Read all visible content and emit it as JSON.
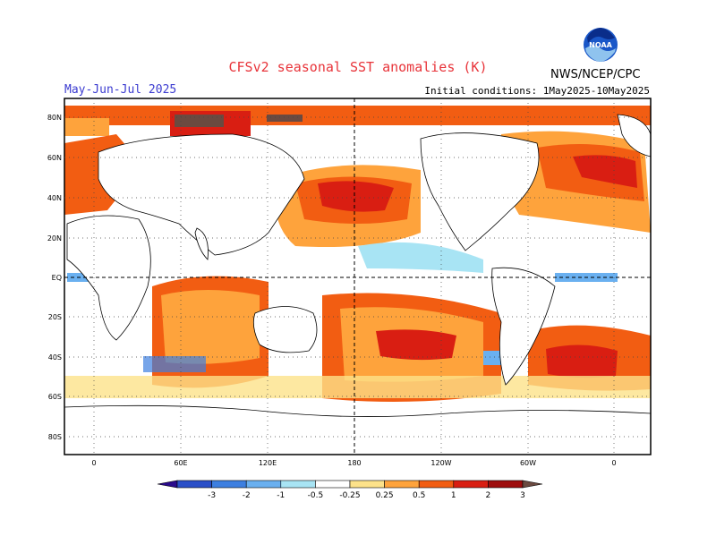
{
  "header": {
    "title": "CFSv2 seasonal SST anomalies (K)",
    "period": "May-Jun-Jul 2025",
    "initial_conditions": "Initial conditions: 1May2025-10May2025",
    "agency": "NWS/NCEP/CPC",
    "logo_text": "NOAA"
  },
  "map": {
    "lat_labels": [
      "80N",
      "60N",
      "40N",
      "20N",
      "EQ",
      "20S",
      "40S",
      "60S",
      "80S"
    ],
    "lon_labels": [
      "0",
      "60E",
      "120E",
      "180",
      "120W",
      "60W",
      "0"
    ]
  },
  "colorbar": {
    "labels": [
      "-3",
      "-2",
      "-1",
      "-0.5",
      "-0.25",
      "0.25",
      "0.5",
      "1",
      "2",
      "3"
    ],
    "colors": [
      "#2a0a8c",
      "#2a4fc8",
      "#3d7fe0",
      "#6ab0f0",
      "#a8e4f4",
      "#ffffff",
      "#fde28a",
      "#fea33c",
      "#f25d12",
      "#d91e12",
      "#9e0d0d",
      "#6b4a40"
    ]
  }
}
